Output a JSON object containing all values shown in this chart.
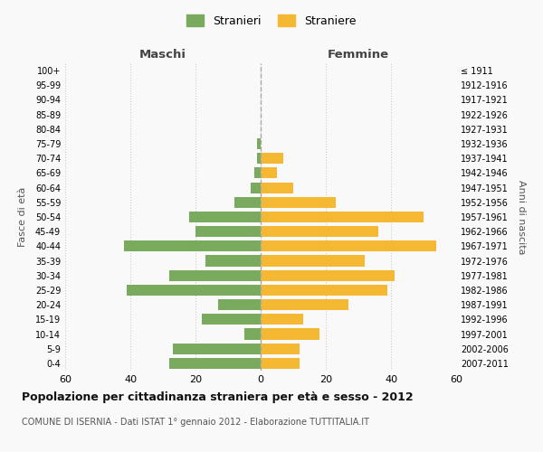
{
  "age_groups": [
    "0-4",
    "5-9",
    "10-14",
    "15-19",
    "20-24",
    "25-29",
    "30-34",
    "35-39",
    "40-44",
    "45-49",
    "50-54",
    "55-59",
    "60-64",
    "65-69",
    "70-74",
    "75-79",
    "80-84",
    "85-89",
    "90-94",
    "95-99",
    "100+"
  ],
  "birth_years": [
    "2007-2011",
    "2002-2006",
    "1997-2001",
    "1992-1996",
    "1987-1991",
    "1982-1986",
    "1977-1981",
    "1972-1976",
    "1967-1971",
    "1962-1966",
    "1957-1961",
    "1952-1956",
    "1947-1951",
    "1942-1946",
    "1937-1941",
    "1932-1936",
    "1927-1931",
    "1922-1926",
    "1917-1921",
    "1912-1916",
    "≤ 1911"
  ],
  "males": [
    28,
    27,
    5,
    18,
    13,
    41,
    28,
    17,
    42,
    20,
    22,
    8,
    3,
    2,
    1,
    1,
    0,
    0,
    0,
    0,
    0
  ],
  "females": [
    12,
    12,
    18,
    13,
    27,
    39,
    41,
    32,
    54,
    36,
    50,
    23,
    10,
    5,
    7,
    0,
    0,
    0,
    0,
    0,
    0
  ],
  "male_color": "#7aaa5e",
  "female_color": "#f5b833",
  "male_label": "Stranieri",
  "female_label": "Straniere",
  "left_header": "Maschi",
  "right_header": "Femmine",
  "left_axis_label": "Fasce di età",
  "right_axis_label": "Anni di nascita",
  "title": "Popolazione per cittadinanza straniera per età e sesso - 2012",
  "subtitle": "COMUNE DI ISERNIA - Dati ISTAT 1° gennaio 2012 - Elaborazione TUTTITALIA.IT",
  "xlim": 60,
  "background_color": "#f9f9f9",
  "grid_color": "#cccccc"
}
